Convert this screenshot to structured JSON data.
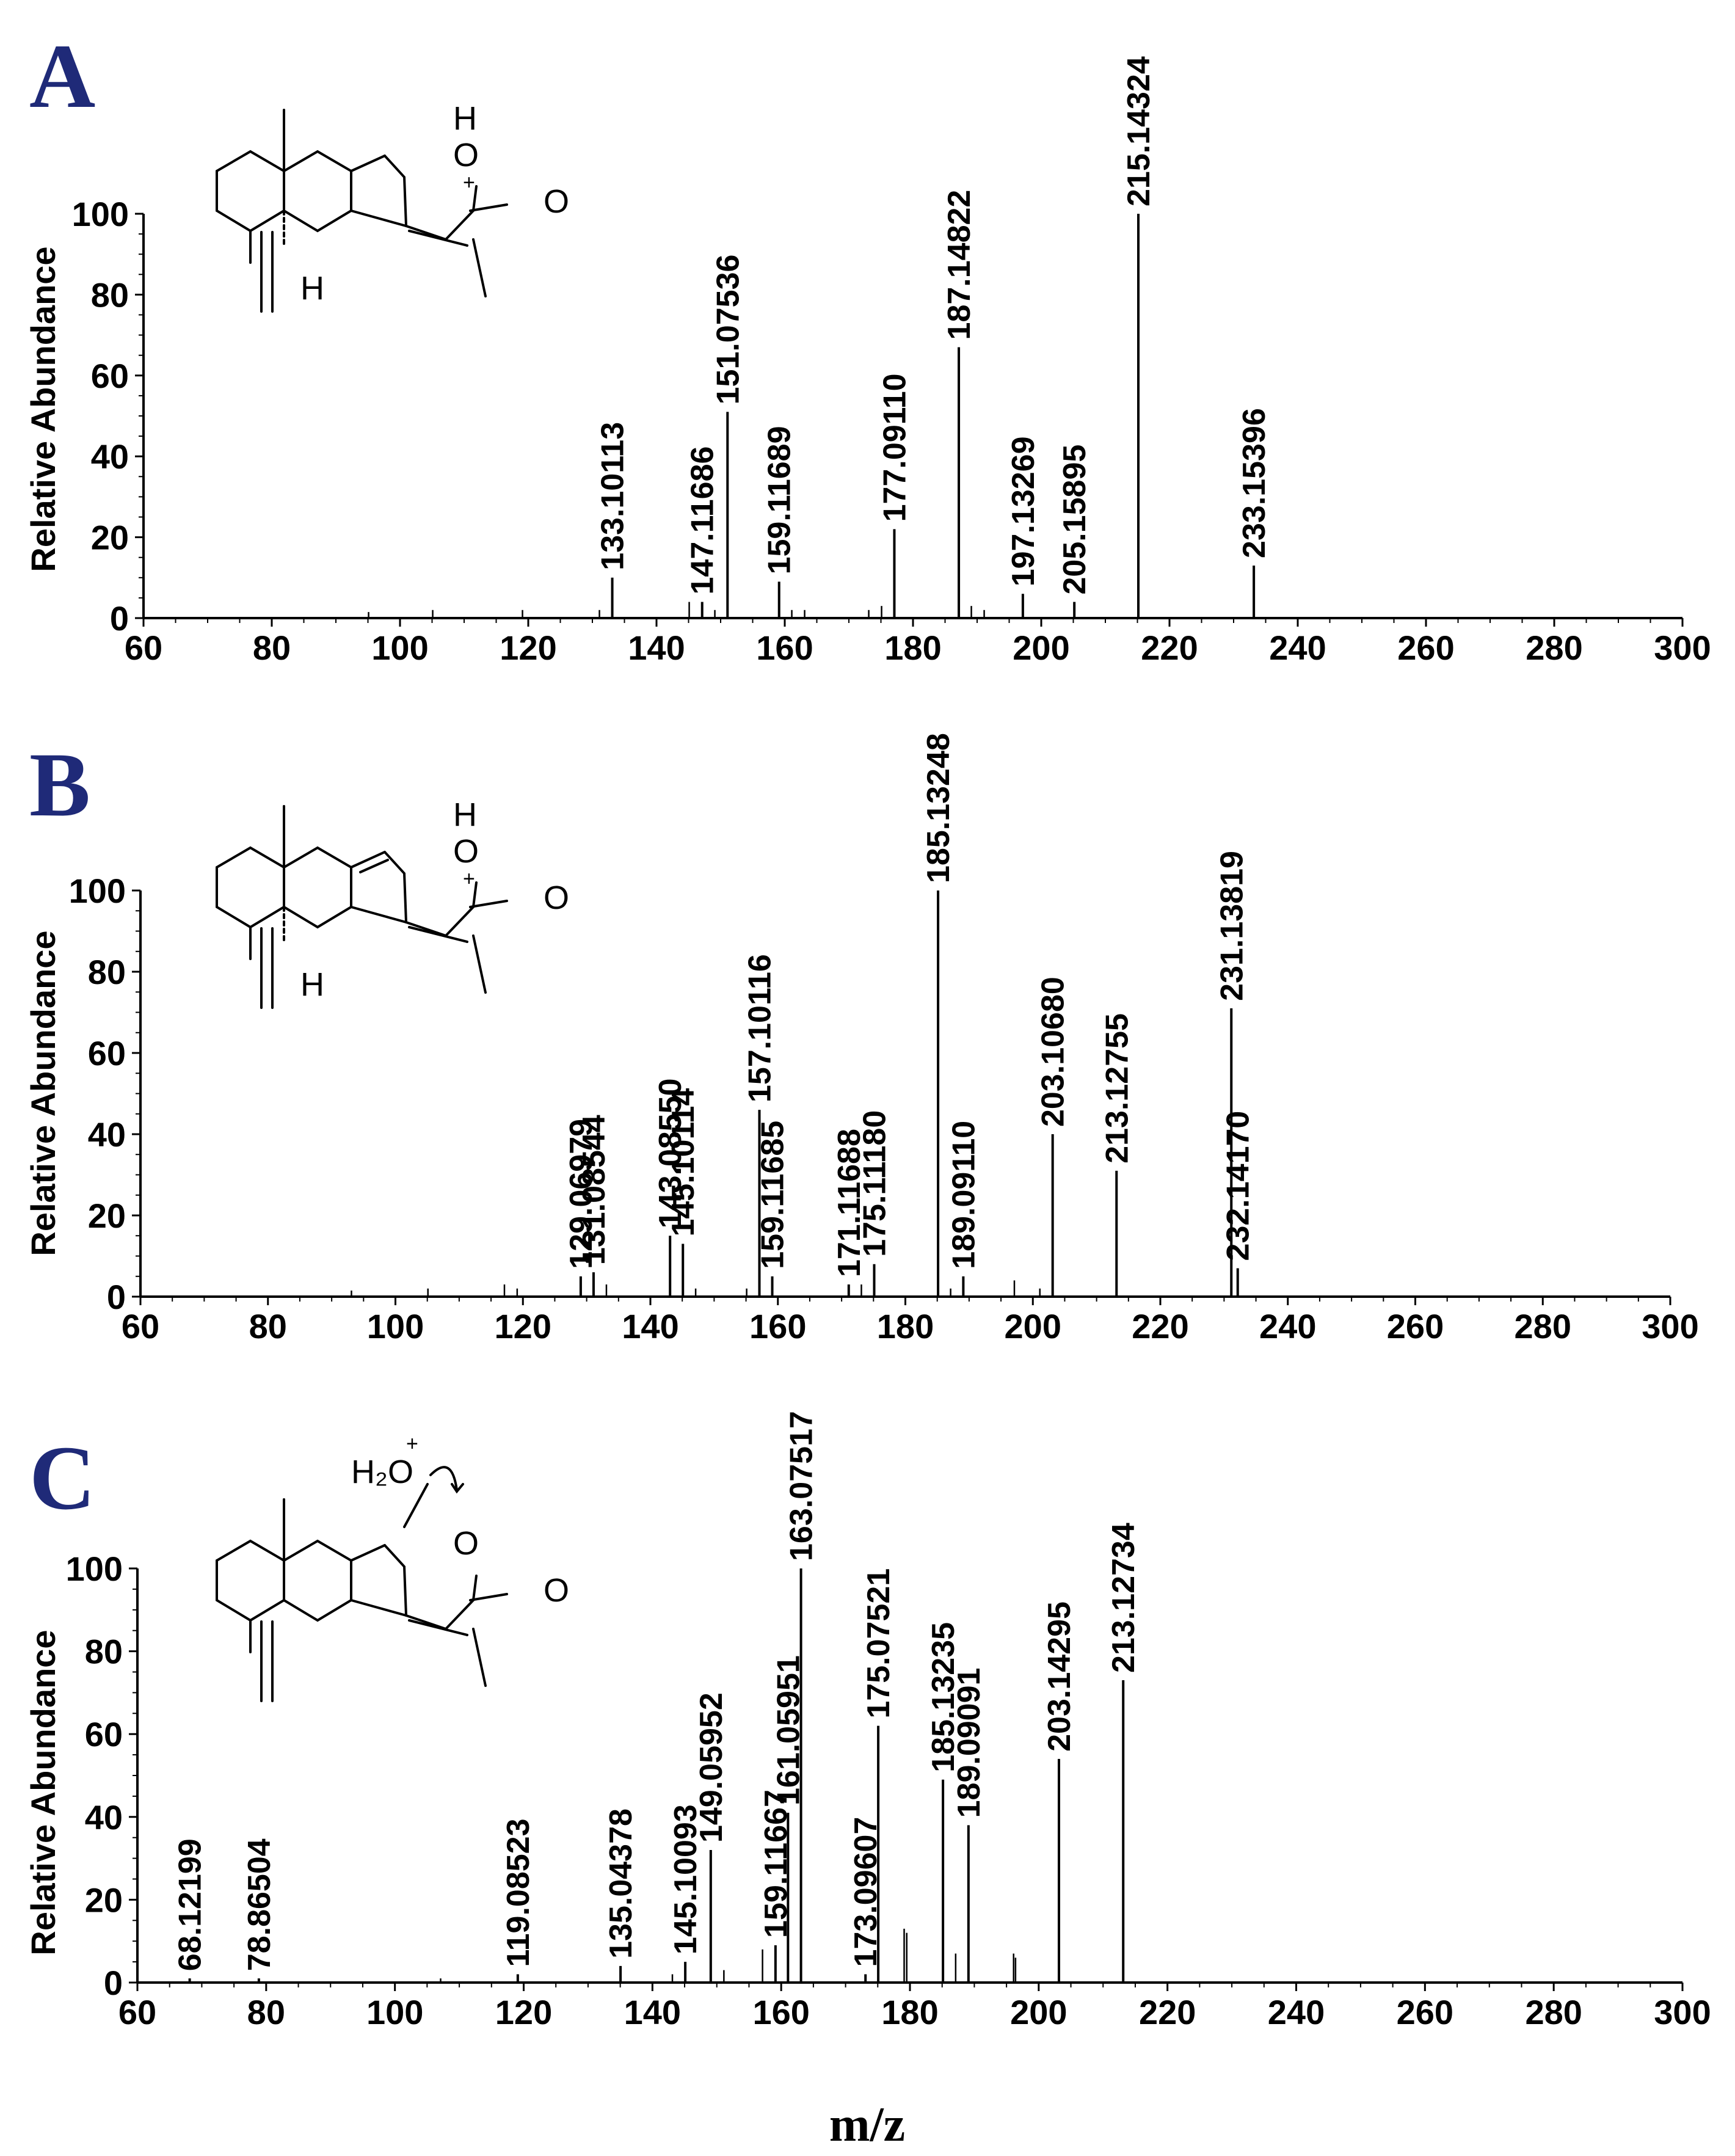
{
  "figure": {
    "x_axis_title": "m/z",
    "y_axis_title": "Relative Abundance"
  },
  "chart_data": [
    {
      "type": "bar",
      "panel": "A",
      "xlim": [
        60,
        300
      ],
      "ylim": [
        0,
        100
      ],
      "xticks": [
        "60",
        "80",
        "100",
        "120",
        "140",
        "160",
        "180",
        "200",
        "220",
        "240",
        "260",
        "280",
        "300"
      ],
      "yticks": [
        "0",
        "20",
        "40",
        "60",
        "80",
        "100"
      ],
      "structure_labels": {
        "oxygen_ring": "O",
        "oxygen_carbonyl": "O",
        "hydrogen_top": "H",
        "hydrogen_junction": "H",
        "charge": "+"
      },
      "peaks": [
        {
          "mz": 133.10113,
          "intensity": 10,
          "label": "133.10113"
        },
        {
          "mz": 147.11686,
          "intensity": 4,
          "label": "147.11686"
        },
        {
          "mz": 151.07536,
          "intensity": 51,
          "label": "151.07536"
        },
        {
          "mz": 159.11689,
          "intensity": 9,
          "label": "159.11689"
        },
        {
          "mz": 177.0911,
          "intensity": 22,
          "label": "177.09110"
        },
        {
          "mz": 187.14822,
          "intensity": 67,
          "label": "187.14822"
        },
        {
          "mz": 197.13269,
          "intensity": 6,
          "label": "197.13269"
        },
        {
          "mz": 205.15895,
          "intensity": 4,
          "label": "205.15895"
        },
        {
          "mz": 215.14324,
          "intensity": 100,
          "label": "215.14324"
        },
        {
          "mz": 233.15396,
          "intensity": 13,
          "label": "233.15396"
        }
      ],
      "minor_peaks": [
        {
          "mz": 105.1,
          "intensity": 2
        },
        {
          "mz": 119.1,
          "intensity": 2
        },
        {
          "mz": 131.1,
          "intensity": 2
        },
        {
          "mz": 145.1,
          "intensity": 4
        },
        {
          "mz": 149.1,
          "intensity": 2
        },
        {
          "mz": 161.1,
          "intensity": 2
        },
        {
          "mz": 163.1,
          "intensity": 2
        },
        {
          "mz": 173.1,
          "intensity": 2
        },
        {
          "mz": 175.1,
          "intensity": 3
        },
        {
          "mz": 189.1,
          "intensity": 3
        },
        {
          "mz": 191.1,
          "intensity": 2
        },
        {
          "mz": 95.1,
          "intensity": 1.5
        }
      ]
    },
    {
      "type": "bar",
      "panel": "B",
      "xlim": [
        60,
        300
      ],
      "ylim": [
        0,
        100
      ],
      "xticks": [
        "60",
        "80",
        "100",
        "120",
        "140",
        "160",
        "180",
        "200",
        "220",
        "240",
        "260",
        "280",
        "300"
      ],
      "yticks": [
        "0",
        "20",
        "40",
        "60",
        "80",
        "100"
      ],
      "structure_labels": {
        "oxygen_ring": "O",
        "oxygen_carbonyl": "O",
        "hydrogen_top": "H",
        "hydrogen_junction": "H",
        "charge": "+"
      },
      "peaks": [
        {
          "mz": 129.06979,
          "intensity": 5,
          "label": "129.06979"
        },
        {
          "mz": 131.08544,
          "intensity": 6,
          "label": "131.08544"
        },
        {
          "mz": 143.0855,
          "intensity": 15,
          "label": "143.08550"
        },
        {
          "mz": 145.10114,
          "intensity": 13,
          "label": "145.10114"
        },
        {
          "mz": 157.10116,
          "intensity": 46,
          "label": "157.10116"
        },
        {
          "mz": 159.11685,
          "intensity": 5,
          "label": "159.11685"
        },
        {
          "mz": 171.11688,
          "intensity": 3,
          "label": "171.11688"
        },
        {
          "mz": 175.1118,
          "intensity": 8,
          "label": "175.11180"
        },
        {
          "mz": 185.13248,
          "intensity": 100,
          "label": "185.13248"
        },
        {
          "mz": 189.0911,
          "intensity": 5,
          "label": "189.09110"
        },
        {
          "mz": 203.1068,
          "intensity": 40,
          "label": "203.10680"
        },
        {
          "mz": 213.12755,
          "intensity": 31,
          "label": "213.12755"
        },
        {
          "mz": 231.13819,
          "intensity": 71,
          "label": "231.13819"
        },
        {
          "mz": 232.1417,
          "intensity": 7,
          "label": "232.14170"
        }
      ],
      "minor_peaks": [
        {
          "mz": 105.1,
          "intensity": 2
        },
        {
          "mz": 117.1,
          "intensity": 3
        },
        {
          "mz": 119.1,
          "intensity": 2
        },
        {
          "mz": 133.1,
          "intensity": 3
        },
        {
          "mz": 147.1,
          "intensity": 2
        },
        {
          "mz": 155.1,
          "intensity": 2
        },
        {
          "mz": 173.1,
          "intensity": 3
        },
        {
          "mz": 187.1,
          "intensity": 2
        },
        {
          "mz": 197.1,
          "intensity": 4
        },
        {
          "mz": 201.1,
          "intensity": 2
        },
        {
          "mz": 93.1,
          "intensity": 1.5
        }
      ]
    },
    {
      "type": "bar",
      "panel": "C",
      "xlim": [
        60,
        300
      ],
      "ylim": [
        0,
        100
      ],
      "xticks": [
        "60",
        "80",
        "100",
        "120",
        "140",
        "160",
        "180",
        "200",
        "220",
        "240",
        "260",
        "280",
        "300"
      ],
      "yticks": [
        "0",
        "20",
        "40",
        "60",
        "80",
        "100"
      ],
      "structure_labels": {
        "oxygen_ring": "O",
        "oxygen_carbonyl": "O",
        "water": "H₂O",
        "charge": "+"
      },
      "peaks": [
        {
          "mz": 68.12199,
          "intensity": 1,
          "label": "68.12199"
        },
        {
          "mz": 78.86504,
          "intensity": 1,
          "label": "78.86504"
        },
        {
          "mz": 119.08523,
          "intensity": 2,
          "label": "119.08523"
        },
        {
          "mz": 135.04378,
          "intensity": 4,
          "label": "135.04378"
        },
        {
          "mz": 145.10093,
          "intensity": 5,
          "label": "145.10093"
        },
        {
          "mz": 149.05952,
          "intensity": 32,
          "label": "149.05952"
        },
        {
          "mz": 159.11667,
          "intensity": 9,
          "label": "159.11667"
        },
        {
          "mz": 161.05951,
          "intensity": 41,
          "label": "161.05951"
        },
        {
          "mz": 163.07517,
          "intensity": 100,
          "label": "163.07517"
        },
        {
          "mz": 173.09607,
          "intensity": 2,
          "label": "173.09607"
        },
        {
          "mz": 175.07521,
          "intensity": 62,
          "label": "175.07521"
        },
        {
          "mz": 185.13235,
          "intensity": 49,
          "label": "185.13235"
        },
        {
          "mz": 189.09091,
          "intensity": 38,
          "label": "189.09091"
        },
        {
          "mz": 203.14295,
          "intensity": 54,
          "label": "203.14295"
        },
        {
          "mz": 213.12734,
          "intensity": 73,
          "label": "213.12734"
        }
      ],
      "minor_peaks": [
        {
          "mz": 151.1,
          "intensity": 3
        },
        {
          "mz": 157.1,
          "intensity": 8
        },
        {
          "mz": 179.1,
          "intensity": 13
        },
        {
          "mz": 179.5,
          "intensity": 12
        },
        {
          "mz": 187.1,
          "intensity": 7
        },
        {
          "mz": 196.1,
          "intensity": 7
        },
        {
          "mz": 196.4,
          "intensity": 6
        },
        {
          "mz": 143.1,
          "intensity": 2
        },
        {
          "mz": 107.1,
          "intensity": 1
        }
      ]
    }
  ]
}
